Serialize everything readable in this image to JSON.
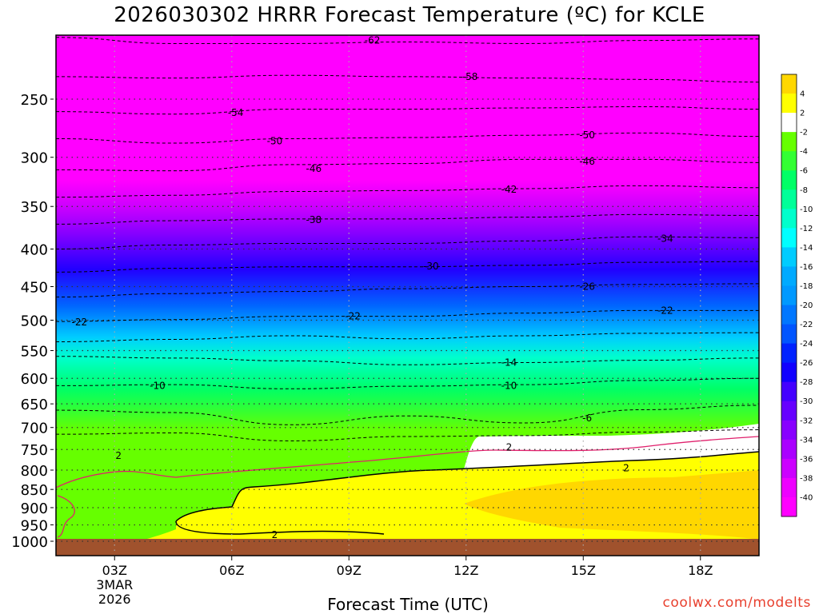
{
  "chart_data": {
    "type": "heatmap",
    "title": "2026030302 HRRR Forecast Temperature (ºC) for KCLE",
    "xlabel": "Forecast Time (UTC)",
    "ylabel": "",
    "credit": "coolwx.com/modelts",
    "x_ticks": [
      "03Z",
      "06Z",
      "09Z",
      "12Z",
      "15Z",
      "18Z"
    ],
    "x_tick_date": [
      "3MAR",
      "2026"
    ],
    "x_tick_hours": [
      3,
      6,
      9,
      12,
      15,
      18
    ],
    "xlim_hours": [
      1.5,
      19.5
    ],
    "y_ticks": [
      250,
      300,
      350,
      400,
      450,
      500,
      550,
      600,
      650,
      700,
      750,
      800,
      850,
      900,
      950,
      1000
    ],
    "ylim": [
      200,
      1040
    ],
    "y_scale": "log pressure (inverted)",
    "surface_pressure": 1013,
    "contour_interval": 4,
    "contours": [
      {
        "level": -62,
        "pressure": [
          206,
          210,
          210,
          209,
          210,
          208,
          207
        ]
      },
      {
        "level": -58,
        "pressure": [
          233,
          234,
          232,
          233,
          234,
          235,
          237
        ]
      },
      {
        "level": -54,
        "pressure": [
          260,
          262,
          258,
          258,
          257,
          256,
          258
        ]
      },
      {
        "level": -50,
        "pressure": [
          283,
          287,
          283,
          282,
          280,
          278,
          281
        ]
      },
      {
        "level": -46,
        "pressure": [
          312,
          313,
          307,
          306,
          302,
          302,
          305
        ]
      },
      {
        "level": -42,
        "pressure": [
          340,
          338,
          334,
          333,
          331,
          328,
          330
        ]
      },
      {
        "level": -38,
        "pressure": [
          370,
          366,
          364,
          364,
          362,
          359,
          360
        ]
      },
      {
        "level": -34,
        "pressure": [
          400,
          395,
          393,
          393,
          390,
          385,
          386
        ]
      },
      {
        "level": -30,
        "pressure": [
          430,
          425,
          423,
          423,
          421,
          417,
          416
        ]
      },
      {
        "level": -26,
        "pressure": [
          465,
          460,
          457,
          453,
          450,
          447,
          446
        ]
      },
      {
        "level": -22,
        "pressure": [
          502,
          499,
          494,
          494,
          489,
          485,
          485
        ]
      },
      {
        "level": -18,
        "pressure": [
          535,
          531,
          525,
          530,
          525,
          521,
          520
        ]
      },
      {
        "level": -14,
        "pressure": [
          560,
          563,
          568,
          575,
          571,
          567,
          563
        ]
      },
      {
        "level": -10,
        "pressure": [
          614,
          612,
          620,
          615,
          612,
          604,
          600
        ]
      },
      {
        "level": -6,
        "pressure": [
          663,
          668,
          694,
          675,
          690,
          662,
          653
        ]
      },
      {
        "level": -2,
        "pressure": [
          715,
          712,
          730,
          720,
          718,
          710,
          705
        ]
      }
    ],
    "labels": [
      {
        "text": "-62",
        "time": 9.6,
        "pressure": 208
      },
      {
        "text": "-58",
        "time": 12.1,
        "pressure": 233
      },
      {
        "text": "-54",
        "time": 6.1,
        "pressure": 261
      },
      {
        "text": "-50",
        "time": 7.1,
        "pressure": 285
      },
      {
        "text": "-50",
        "time": 15.1,
        "pressure": 280
      },
      {
        "text": "-46",
        "time": 8.1,
        "pressure": 311
      },
      {
        "text": "-46",
        "time": 15.1,
        "pressure": 304
      },
      {
        "text": "-42",
        "time": 13.1,
        "pressure": 332
      },
      {
        "text": "-38",
        "time": 8.1,
        "pressure": 365
      },
      {
        "text": "-34",
        "time": 17.1,
        "pressure": 387
      },
      {
        "text": "-30",
        "time": 11.1,
        "pressure": 422
      },
      {
        "text": "-26",
        "time": 15.1,
        "pressure": 450
      },
      {
        "text": "-22",
        "time": 2.1,
        "pressure": 503
      },
      {
        "text": "-22",
        "time": 9.1,
        "pressure": 494
      },
      {
        "text": "-22",
        "time": 17.1,
        "pressure": 485
      },
      {
        "text": "-14",
        "time": 13.1,
        "pressure": 571
      },
      {
        "text": "-10",
        "time": 4.1,
        "pressure": 614
      },
      {
        "text": "-10",
        "time": 13.1,
        "pressure": 614
      },
      {
        "text": "-6",
        "time": 15.1,
        "pressure": 680
      },
      {
        "text": "2",
        "time": 3.1,
        "pressure": 765
      },
      {
        "text": "2",
        "time": 13.1,
        "pressure": 745
      },
      {
        "text": "2",
        "time": 16.1,
        "pressure": 795
      },
      {
        "text": "2",
        "time": 7.1,
        "pressure": 980
      }
    ],
    "freezing_line": {
      "level": 0,
      "color": "#e0206c"
    },
    "colorbar": {
      "labels": [
        "4",
        "2",
        "-2",
        "-4",
        "-6",
        "-8",
        "-10",
        "-12",
        "-14",
        "-16",
        "-18",
        "-20",
        "-22",
        "-24",
        "-26",
        "-28",
        "-30",
        "-32",
        "-34",
        "-36",
        "-38",
        "-40"
      ],
      "colors": [
        "#ffd700",
        "#ffff00",
        "#ffffff",
        "#66ff00",
        "#33ff33",
        "#00ff66",
        "#00ff99",
        "#00ffcc",
        "#00ffff",
        "#00ccff",
        "#00aaff",
        "#0099ff",
        "#0077ff",
        "#0055ff",
        "#0022ff",
        "#1100ff",
        "#4400ff",
        "#6600ff",
        "#8800ff",
        "#aa00ff",
        "#cc00ff",
        "#ee00ff",
        "#ff00ff"
      ]
    }
  }
}
